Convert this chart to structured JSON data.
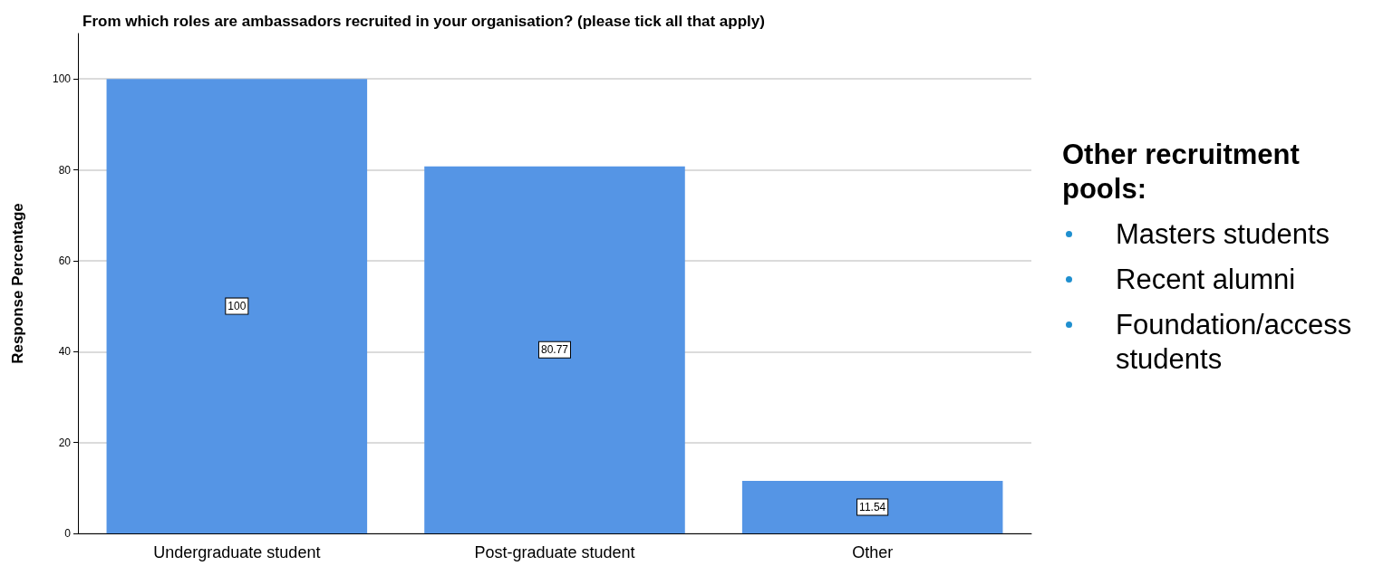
{
  "chart_data": {
    "type": "bar",
    "title": "From which roles are ambassadors recruited in your organisation? (please tick all that apply)",
    "ylabel": "Response Percentage",
    "categories": [
      "Undergraduate student",
      "Post-graduate student",
      "Other"
    ],
    "values": [
      100,
      80.77,
      11.54
    ],
    "color": "#5595e5",
    "ylim": [
      0,
      110
    ],
    "yticks": [
      0,
      20,
      40,
      60,
      80,
      100
    ],
    "grid": "y",
    "data_labels": true,
    "annotations": [
      "Other recruitment pools:",
      "Masters students",
      "Recent alumni",
      "Foundation/access students"
    ]
  }
}
